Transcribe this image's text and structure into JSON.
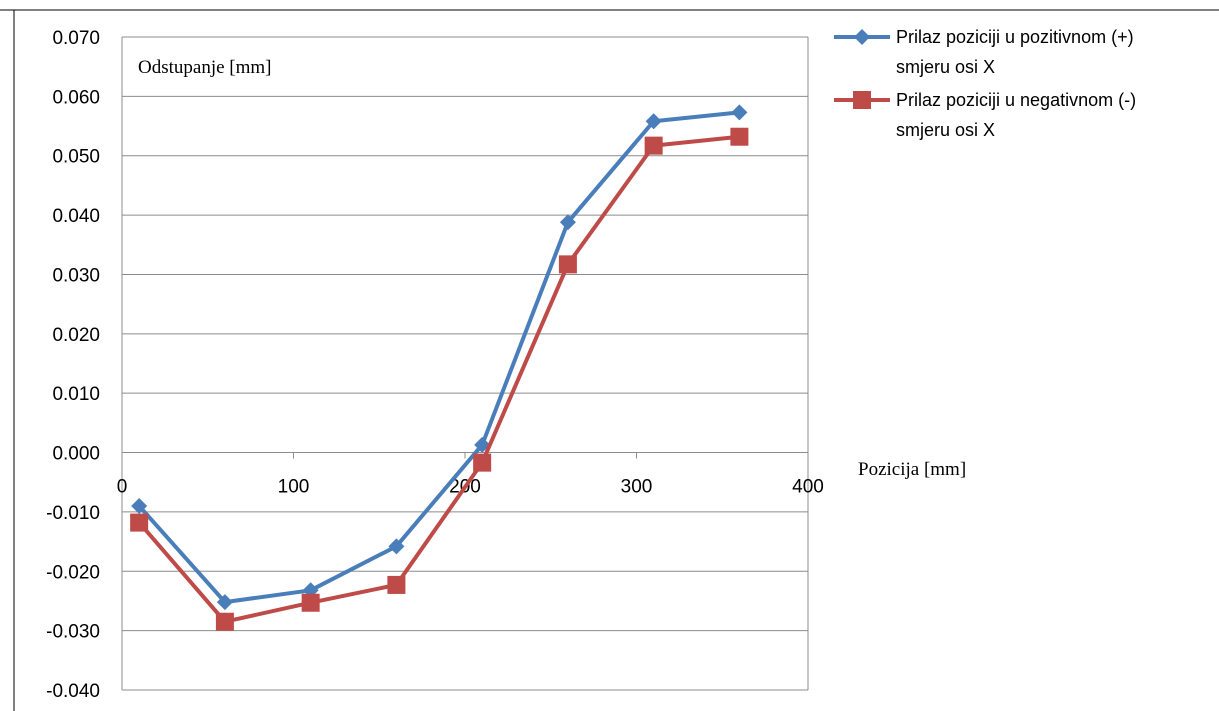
{
  "chart_data": {
    "type": "line",
    "title": "",
    "ylabel": "Odstupanje [mm]",
    "xlabel": "Pozicija [mm]",
    "xlim": [
      0,
      400
    ],
    "ylim": [
      -0.04,
      0.07
    ],
    "x_ticks": [
      0,
      100,
      200,
      300,
      400
    ],
    "y_ticks": [
      "0.070",
      "0.060",
      "0.050",
      "0.040",
      "0.030",
      "0.020",
      "0.010",
      "0.000",
      "-0.010",
      "-0.020",
      "-0.030",
      "-0.040"
    ],
    "grid": "horizontal",
    "legend_position": "right",
    "x": [
      10,
      60,
      110,
      160,
      210,
      260,
      310,
      360
    ],
    "series": [
      {
        "name": "Prilaz poziciji u pozitivnom (+) smjeru osi X",
        "legend_lines": [
          "Prilaz poziciji u pozitivnom (+)",
          "smjeru osi X"
        ],
        "marker": "diamond",
        "color": "#4a7ebb",
        "values": [
          -0.009,
          -0.0252,
          -0.0232,
          -0.0158,
          0.0013,
          0.0388,
          0.0558,
          0.0573
        ]
      },
      {
        "name": "Prilaz poziciji u negativnom (-) smjeru osi X",
        "legend_lines": [
          "Prilaz poziciji u negativnom (-)",
          "smjeru osi X"
        ],
        "marker": "square",
        "color": "#be4b48",
        "values": [
          -0.0118,
          -0.0285,
          -0.0253,
          -0.0223,
          -0.0017,
          0.0317,
          0.0517,
          0.0532
        ]
      }
    ]
  }
}
